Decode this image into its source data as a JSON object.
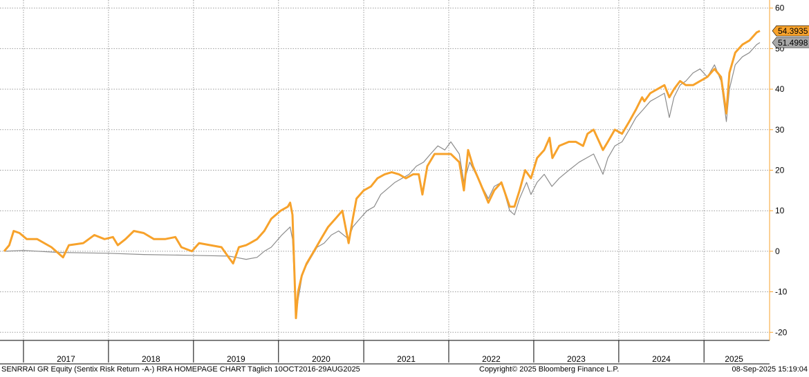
{
  "footer": {
    "left": "SENRRAI GR Equity (Sentix Risk Return -A-) RRA HOMEPAGE CHART  Täglich 10OCT2016-29AUG2025",
    "center": "Copyright© 2025 Bloomberg Finance L.P.",
    "right": "08-Sep-2025 15:19:04"
  },
  "chart_data": {
    "type": "line",
    "x_range": [
      "2016-10-10",
      "2025-08-29"
    ],
    "ylim": [
      -22,
      62
    ],
    "y_ticks": [
      -20,
      -10,
      0,
      10,
      20,
      30,
      40,
      50,
      60
    ],
    "x_tick_labels": [
      "2017",
      "2018",
      "2019",
      "2020",
      "2021",
      "2022",
      "2023",
      "2024",
      "2025"
    ],
    "grid": true,
    "y_axis_position": "right",
    "series": [
      {
        "color": "#f7a22b",
        "last_value_label": "54.3935",
        "points": [
          [
            "2016-10-10",
            0
          ],
          [
            "2016-11-01",
            1.5
          ],
          [
            "2016-11-20",
            5
          ],
          [
            "2016-12-15",
            4.5
          ],
          [
            "2017-01-15",
            3
          ],
          [
            "2017-03-01",
            3
          ],
          [
            "2017-05-01",
            1
          ],
          [
            "2017-06-20",
            -1.5
          ],
          [
            "2017-07-15",
            1.5
          ],
          [
            "2017-09-15",
            2
          ],
          [
            "2017-11-01",
            4
          ],
          [
            "2017-12-15",
            3
          ],
          [
            "2018-01-20",
            3.5
          ],
          [
            "2018-02-10",
            1.5
          ],
          [
            "2018-03-15",
            3
          ],
          [
            "2018-04-20",
            5
          ],
          [
            "2018-06-01",
            4.5
          ],
          [
            "2018-07-15",
            3
          ],
          [
            "2018-09-01",
            3
          ],
          [
            "2018-10-15",
            3.5
          ],
          [
            "2018-11-10",
            1
          ],
          [
            "2018-12-25",
            0
          ],
          [
            "2019-01-25",
            2
          ],
          [
            "2019-03-15",
            1.5
          ],
          [
            "2019-05-01",
            1
          ],
          [
            "2019-06-01",
            -1.5
          ],
          [
            "2019-06-20",
            -3
          ],
          [
            "2019-07-15",
            1
          ],
          [
            "2019-08-15",
            1.5
          ],
          [
            "2019-09-01",
            2
          ],
          [
            "2019-10-01",
            3
          ],
          [
            "2019-11-01",
            5
          ],
          [
            "2019-12-01",
            8
          ],
          [
            "2020-01-10",
            10
          ],
          [
            "2020-02-10",
            11
          ],
          [
            "2020-02-20",
            12
          ],
          [
            "2020-03-01",
            9
          ],
          [
            "2020-03-16",
            -16.5
          ],
          [
            "2020-03-25",
            -10
          ],
          [
            "2020-04-10",
            -6
          ],
          [
            "2020-05-01",
            -3
          ],
          [
            "2020-06-01",
            0
          ],
          [
            "2020-07-01",
            3
          ],
          [
            "2020-08-01",
            6
          ],
          [
            "2020-09-01",
            8
          ],
          [
            "2020-10-01",
            10
          ],
          [
            "2020-10-28",
            2
          ],
          [
            "2020-11-15",
            8
          ],
          [
            "2020-12-01",
            13
          ],
          [
            "2021-01-01",
            15
          ],
          [
            "2021-02-01",
            16
          ],
          [
            "2021-03-01",
            18
          ],
          [
            "2021-04-01",
            19
          ],
          [
            "2021-05-01",
            19.5
          ],
          [
            "2021-06-01",
            19
          ],
          [
            "2021-07-01",
            18
          ],
          [
            "2021-08-01",
            19
          ],
          [
            "2021-08-25",
            19
          ],
          [
            "2021-09-10",
            14
          ],
          [
            "2021-10-01",
            21
          ],
          [
            "2021-11-01",
            24
          ],
          [
            "2021-12-01",
            24
          ],
          [
            "2022-01-10",
            24
          ],
          [
            "2022-02-15",
            22
          ],
          [
            "2022-03-07",
            15
          ],
          [
            "2022-03-25",
            25
          ],
          [
            "2022-04-15",
            21
          ],
          [
            "2022-05-15",
            17
          ],
          [
            "2022-06-20",
            12
          ],
          [
            "2022-07-15",
            15
          ],
          [
            "2022-08-15",
            17
          ],
          [
            "2022-09-20",
            11
          ],
          [
            "2022-10-10",
            11
          ],
          [
            "2022-11-01",
            15
          ],
          [
            "2022-11-25",
            20
          ],
          [
            "2022-12-20",
            18
          ],
          [
            "2023-01-15",
            23
          ],
          [
            "2023-02-15",
            25
          ],
          [
            "2023-03-10",
            28
          ],
          [
            "2023-03-22",
            23
          ],
          [
            "2023-04-20",
            26
          ],
          [
            "2023-06-01",
            27
          ],
          [
            "2023-07-01",
            27
          ],
          [
            "2023-08-01",
            26
          ],
          [
            "2023-08-20",
            29
          ],
          [
            "2023-09-15",
            30
          ],
          [
            "2023-10-01",
            28
          ],
          [
            "2023-10-25",
            25
          ],
          [
            "2023-11-15",
            27
          ],
          [
            "2023-12-15",
            30
          ],
          [
            "2024-01-15",
            29
          ],
          [
            "2024-02-15",
            32
          ],
          [
            "2024-03-15",
            35
          ],
          [
            "2024-04-10",
            38
          ],
          [
            "2024-04-20",
            37
          ],
          [
            "2024-05-15",
            39
          ],
          [
            "2024-06-15",
            40
          ],
          [
            "2024-07-15",
            41
          ],
          [
            "2024-08-05",
            38
          ],
          [
            "2024-08-25",
            40
          ],
          [
            "2024-09-20",
            42
          ],
          [
            "2024-10-15",
            41
          ],
          [
            "2024-11-15",
            41
          ],
          [
            "2024-12-15",
            42
          ],
          [
            "2025-01-15",
            43
          ],
          [
            "2025-02-15",
            45
          ],
          [
            "2025-03-15",
            43
          ],
          [
            "2025-04-07",
            34
          ],
          [
            "2025-04-20",
            44
          ],
          [
            "2025-05-15",
            49
          ],
          [
            "2025-06-15",
            51
          ],
          [
            "2025-07-15",
            52
          ],
          [
            "2025-08-15",
            54
          ],
          [
            "2025-08-29",
            54.39
          ]
        ]
      },
      {
        "color": "#8c8c8c",
        "last_value_label": "51.4998",
        "points": [
          [
            "2016-10-10",
            0
          ],
          [
            "2017-01-01",
            0.2
          ],
          [
            "2017-06-01",
            -0.3
          ],
          [
            "2018-01-01",
            -0.5
          ],
          [
            "2018-06-01",
            -0.8
          ],
          [
            "2018-12-25",
            -1
          ],
          [
            "2019-06-01",
            -1.2
          ],
          [
            "2019-07-01",
            -1.5
          ],
          [
            "2019-08-15",
            -2
          ],
          [
            "2019-10-01",
            -1.5
          ],
          [
            "2019-11-01",
            0
          ],
          [
            "2019-12-01",
            1
          ],
          [
            "2020-01-15",
            4
          ],
          [
            "2020-02-20",
            6
          ],
          [
            "2020-03-01",
            3
          ],
          [
            "2020-03-16",
            -16
          ],
          [
            "2020-03-25",
            -12
          ],
          [
            "2020-04-15",
            -5
          ],
          [
            "2020-05-15",
            -2
          ],
          [
            "2020-06-15",
            1
          ],
          [
            "2020-07-15",
            2
          ],
          [
            "2020-08-15",
            4
          ],
          [
            "2020-09-15",
            5
          ],
          [
            "2020-10-28",
            3
          ],
          [
            "2020-11-15",
            6
          ],
          [
            "2020-12-15",
            8
          ],
          [
            "2021-01-15",
            10
          ],
          [
            "2021-02-15",
            11
          ],
          [
            "2021-03-15",
            14
          ],
          [
            "2021-05-15",
            17
          ],
          [
            "2021-07-15",
            19
          ],
          [
            "2021-08-15",
            21
          ],
          [
            "2021-09-15",
            22
          ],
          [
            "2021-10-15",
            24
          ],
          [
            "2021-11-15",
            26
          ],
          [
            "2021-12-15",
            25
          ],
          [
            "2022-01-10",
            27
          ],
          [
            "2022-02-15",
            24
          ],
          [
            "2022-03-07",
            17
          ],
          [
            "2022-04-01",
            22
          ],
          [
            "2022-05-15",
            17
          ],
          [
            "2022-06-20",
            13
          ],
          [
            "2022-07-15",
            16
          ],
          [
            "2022-08-15",
            17
          ],
          [
            "2022-09-20",
            10
          ],
          [
            "2022-10-10",
            9
          ],
          [
            "2022-11-01",
            13
          ],
          [
            "2022-12-01",
            17
          ],
          [
            "2022-12-20",
            14
          ],
          [
            "2023-01-15",
            17
          ],
          [
            "2023-02-15",
            19
          ],
          [
            "2023-03-20",
            16
          ],
          [
            "2023-04-20",
            18
          ],
          [
            "2023-06-01",
            20
          ],
          [
            "2023-07-15",
            22
          ],
          [
            "2023-08-15",
            23
          ],
          [
            "2023-09-15",
            24
          ],
          [
            "2023-10-25",
            19
          ],
          [
            "2023-11-15",
            23
          ],
          [
            "2023-12-15",
            26
          ],
          [
            "2024-01-15",
            27
          ],
          [
            "2024-02-15",
            30
          ],
          [
            "2024-03-15",
            33
          ],
          [
            "2024-04-15",
            35
          ],
          [
            "2024-05-15",
            37
          ],
          [
            "2024-06-15",
            38
          ],
          [
            "2024-07-15",
            39
          ],
          [
            "2024-08-05",
            33
          ],
          [
            "2024-08-25",
            38
          ],
          [
            "2024-09-20",
            41
          ],
          [
            "2024-10-15",
            42
          ],
          [
            "2024-11-15",
            44
          ],
          [
            "2024-12-15",
            45
          ],
          [
            "2025-01-15",
            43
          ],
          [
            "2025-02-15",
            46
          ],
          [
            "2025-03-15",
            42
          ],
          [
            "2025-04-07",
            32
          ],
          [
            "2025-04-20",
            40
          ],
          [
            "2025-05-15",
            46
          ],
          [
            "2025-06-15",
            48
          ],
          [
            "2025-07-15",
            49
          ],
          [
            "2025-08-15",
            51
          ],
          [
            "2025-08-29",
            51.5
          ]
        ]
      }
    ]
  }
}
